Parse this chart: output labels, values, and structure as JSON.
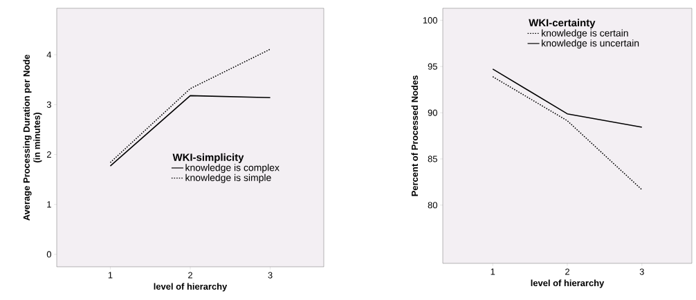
{
  "chart_data": [
    {
      "type": "line",
      "xlabel": "level of hierarchy",
      "ylabel": "Average Processing Duration per Node\n(in minutes)",
      "legend_title": "WKI-simplicity",
      "legend": "right",
      "x": [
        1,
        2,
        3
      ],
      "xlim": [
        0.33,
        3.67
      ],
      "xticks": [
        1,
        2,
        3
      ],
      "ylim": [
        -0.25,
        4.93
      ],
      "yticks": [
        0,
        1,
        2,
        3,
        4
      ],
      "grid": false,
      "marker": "none",
      "series": [
        {
          "name": "knowledge is complex",
          "color": "#000000",
          "line_style": "solid",
          "values": [
            1.77,
            3.18,
            3.14
          ]
        },
        {
          "name": "knowledge is simple",
          "color": "#000000",
          "line_style": "dotted",
          "values": [
            1.84,
            3.32,
            4.11
          ]
        }
      ]
    },
    {
      "type": "line",
      "xlabel": "level of hierarchy",
      "ylabel": "Percent of Processed Nodes",
      "legend_title": "WKI-certainty",
      "legend": "top right",
      "x": [
        1,
        2,
        3
      ],
      "xlim": [
        0.33,
        3.67
      ],
      "xticks": [
        1,
        2,
        3
      ],
      "ylim": [
        73.7,
        101.3
      ],
      "yticks": [
        80,
        85,
        90,
        95,
        100
      ],
      "grid": false,
      "marker": "none",
      "series": [
        {
          "name": "knowledge is certain",
          "color": "#000000",
          "line_style": "dotted",
          "values": [
            93.9,
            89.13,
            81.67
          ]
        },
        {
          "name": "knowledge is uncertain",
          "color": "#000000",
          "line_style": "solid",
          "values": [
            94.73,
            89.88,
            88.43
          ]
        }
      ]
    }
  ]
}
